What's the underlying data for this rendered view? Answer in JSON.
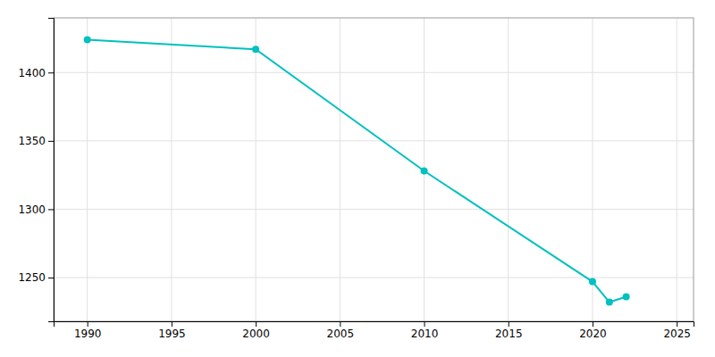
{
  "chart_data": {
    "type": "line",
    "x": [
      1990,
      2000,
      2010,
      2020,
      2021,
      2022
    ],
    "values": [
      1424,
      1417,
      1328,
      1247,
      1232,
      1236
    ],
    "color": "#00C0C0",
    "marker": "circle",
    "xlim": [
      1988,
      2026
    ],
    "ylim": [
      1218,
      1440
    ],
    "xticks": [
      1990,
      1995,
      2000,
      2005,
      2010,
      2015,
      2020,
      2025
    ],
    "yticks": [
      1250,
      1300,
      1350,
      1400
    ],
    "grid": true
  }
}
